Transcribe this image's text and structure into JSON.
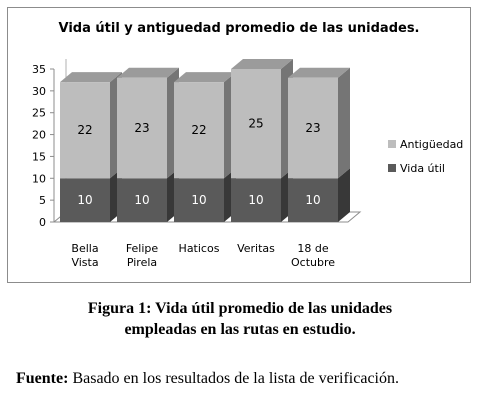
{
  "chart_data": {
    "type": "bar",
    "stacked": true,
    "title": "Vida útil y antiguedad promedio de las unidades.",
    "categories": [
      [
        "Bella",
        "Vista"
      ],
      [
        "Felipe",
        "Pirela"
      ],
      [
        "Haticos"
      ],
      [
        "Veritas"
      ],
      [
        "18 de",
        "Octubre"
      ]
    ],
    "series": [
      {
        "name": "Vida útil",
        "values": [
          10,
          10,
          10,
          10,
          10
        ],
        "color": "#5a5a5a"
      },
      {
        "name": "Antigüedad",
        "values": [
          22,
          23,
          22,
          25,
          23
        ],
        "color": "#bdbdbd"
      }
    ],
    "yticks": [
      "0",
      "5",
      "10",
      "15",
      "20",
      "25",
      "30",
      "35"
    ],
    "ylim": [
      0,
      35
    ],
    "grid": false,
    "legend_position": "right"
  },
  "caption": {
    "line1": "Figura 1: Vida útil promedio de las unidades",
    "line2": "empleadas en las rutas en estudio."
  },
  "source": {
    "label": "Fuente:",
    "text": " Basado en los resultados de la lista de verificación."
  }
}
